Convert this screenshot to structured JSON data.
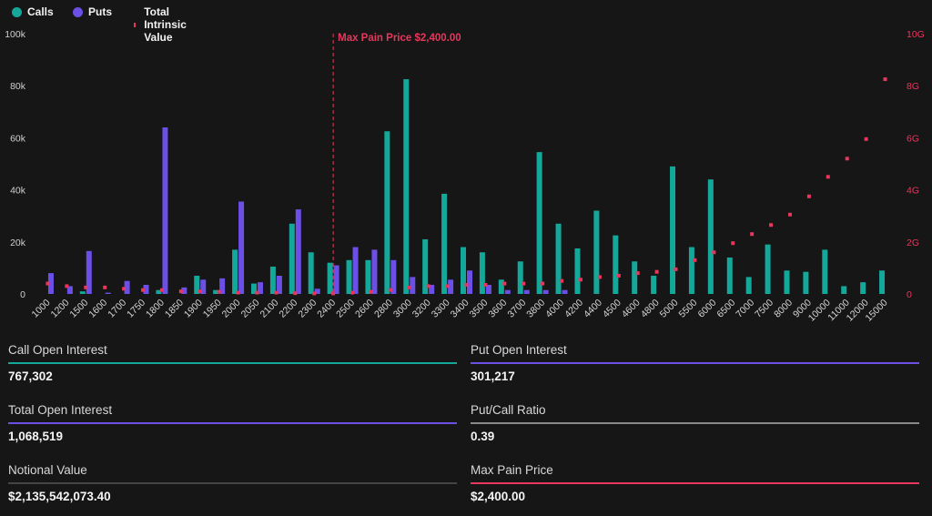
{
  "legend": {
    "calls": {
      "label": "Calls",
      "color": "#14a89a"
    },
    "puts": {
      "label": "Puts",
      "color": "#6b4fe6"
    },
    "intrinsic": {
      "label": "Total Intrinsic Value",
      "color": "#e8365c"
    }
  },
  "chart_data": {
    "type": "bar",
    "categories": [
      "1000",
      "1200",
      "1500",
      "1600",
      "1700",
      "1750",
      "1800",
      "1850",
      "1900",
      "1950",
      "2000",
      "2050",
      "2100",
      "2200",
      "2300",
      "2400",
      "2500",
      "2600",
      "2800",
      "3000",
      "3200",
      "3300",
      "3400",
      "3500",
      "3600",
      "3700",
      "3800",
      "4000",
      "4200",
      "4400",
      "4500",
      "4600",
      "4800",
      "5000",
      "5500",
      "6000",
      "6500",
      "7000",
      "7500",
      "8000",
      "9000",
      "10000",
      "11000",
      "12000",
      "15000"
    ],
    "series": [
      {
        "name": "Calls",
        "axis": "left",
        "color": "#14a89a",
        "values": [
          0,
          0,
          1000,
          0,
          0,
          0,
          1500,
          0,
          7000,
          1500,
          17000,
          4000,
          10500,
          27000,
          16000,
          12000,
          13000,
          13000,
          62500,
          82500,
          21000,
          38500,
          18000,
          16000,
          5500,
          12500,
          54500,
          27000,
          17500,
          32000,
          22500,
          12500,
          7000,
          49000,
          18000,
          44000,
          14000,
          6500,
          19000,
          9000,
          8500,
          17000,
          3000,
          4500,
          9000
        ]
      },
      {
        "name": "Puts",
        "axis": "left",
        "color": "#6b4fe6",
        "values": [
          8000,
          3000,
          16500,
          500,
          5000,
          3500,
          64000,
          2500,
          5500,
          6000,
          35500,
          4500,
          7000,
          32500,
          2000,
          11000,
          18000,
          17000,
          13000,
          6500,
          3500,
          5500,
          9000,
          3500,
          1500,
          1500,
          1500,
          1500,
          0,
          0,
          0,
          0,
          0,
          0,
          0,
          0,
          0,
          0,
          0,
          0,
          0,
          0,
          0,
          0,
          0
        ]
      },
      {
        "name": "Total Intrinsic Value",
        "axis": "right",
        "type": "scatter",
        "color": "#e8365c",
        "values": [
          0.4,
          0.3,
          0.25,
          0.25,
          0.2,
          0.15,
          0.15,
          0.1,
          0.1,
          0.08,
          0.05,
          0.05,
          0.05,
          0.03,
          0.02,
          0.02,
          0.05,
          0.08,
          0.15,
          0.25,
          0.3,
          0.3,
          0.35,
          0.35,
          0.4,
          0.4,
          0.4,
          0.5,
          0.55,
          0.65,
          0.7,
          0.8,
          0.85,
          0.95,
          1.3,
          1.6,
          1.95,
          2.3,
          2.65,
          3.05,
          3.75,
          4.5,
          5.2,
          5.95,
          8.25
        ]
      }
    ],
    "y_left": {
      "min": 0,
      "max": 100000,
      "ticks": [
        "0",
        "20k",
        "40k",
        "60k",
        "80k",
        "100k"
      ]
    },
    "y_right": {
      "min": 0,
      "max": 10,
      "ticks": [
        "0",
        "2G",
        "4G",
        "6G",
        "8G",
        "10G"
      ]
    },
    "max_pain": {
      "category": "2400",
      "label": "Max Pain Price $2,400.00",
      "color": "#e8365c"
    },
    "grid": false,
    "legend_position": "top-left"
  },
  "stats": [
    {
      "label": "Call Open Interest",
      "value": "767,302",
      "color": "#14a89a"
    },
    {
      "label": "Put Open Interest",
      "value": "301,217",
      "color": "#6b4fe6"
    },
    {
      "label": "Total Open Interest",
      "value": "1,068,519",
      "color": "#6b4fe6"
    },
    {
      "label": "Put/Call Ratio",
      "value": "0.39",
      "color": "#8a8a8a"
    },
    {
      "label": "Notional Value",
      "value": "$2,135,542,073.40",
      "color": "#444444"
    },
    {
      "label": "Max Pain Price",
      "value": "$2,400.00",
      "color": "#e8365c"
    }
  ]
}
